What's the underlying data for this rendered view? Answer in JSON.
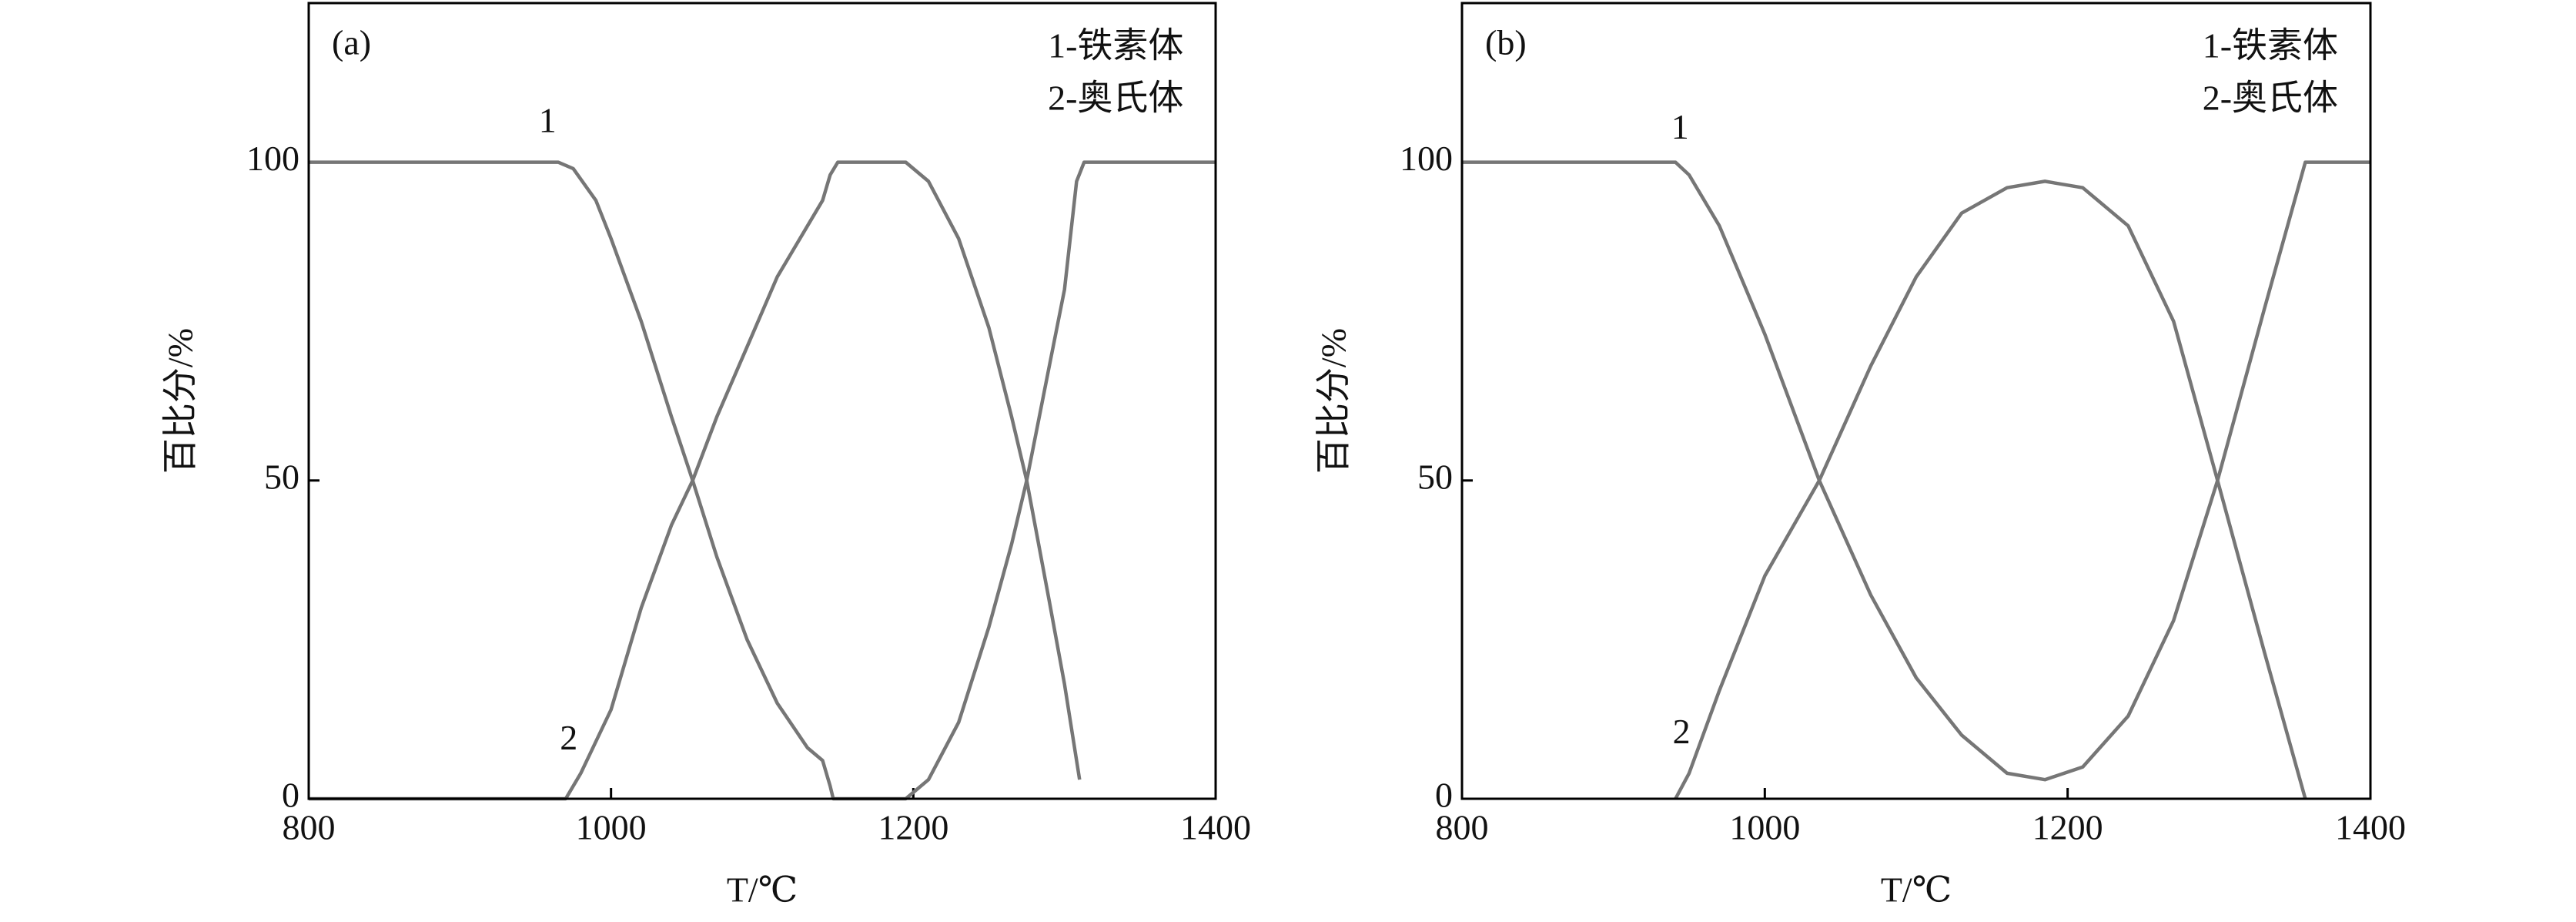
{
  "chart_data": [
    {
      "type": "line",
      "panel": "(a)",
      "xlabel": "T/℃",
      "ylabel": "百比分/%",
      "xlim": [
        800,
        1400
      ],
      "xticks": [
        800,
        1000,
        1200,
        1400
      ],
      "ylim": [
        0,
        125
      ],
      "yticks": [
        0,
        50,
        100
      ],
      "series": [
        {
          "name": "1-铁素体",
          "color": "#767676",
          "x": [
            800,
            965,
            975,
            990,
            1000,
            1020,
            1040,
            1054,
            1070,
            1090,
            1110,
            1130,
            1140,
            1145,
            1147,
            1195,
            1210,
            1230,
            1250,
            1265,
            1275,
            1290,
            1300,
            1308,
            1313,
            1400
          ],
          "values": [
            100,
            100,
            99,
            94,
            88,
            75,
            60,
            50,
            38,
            25,
            15,
            8,
            6,
            2,
            0,
            0,
            3,
            12,
            27,
            40,
            50,
            68,
            80,
            97,
            100,
            100
          ]
        },
        {
          "name": "2-奥氏体",
          "color": "#767676",
          "x": [
            800,
            970,
            980,
            1000,
            1020,
            1040,
            1054,
            1070,
            1090,
            1110,
            1130,
            1140,
            1145,
            1150,
            1195,
            1210,
            1230,
            1250,
            1265,
            1275,
            1290,
            1300,
            1310
          ],
          "values": [
            0,
            0,
            4,
            14,
            30,
            43,
            50,
            60,
            71,
            82,
            90,
            94,
            98,
            100,
            100,
            97,
            88,
            74,
            60,
            50,
            31,
            18,
            3
          ]
        }
      ],
      "annotations": [
        {
          "text": "1",
          "x": 958,
          "y": 106
        },
        {
          "text": "2",
          "x": 972,
          "y": 9
        }
      ]
    },
    {
      "type": "line",
      "panel": "(b)",
      "xlabel": "T/℃",
      "ylabel": "百比分/%",
      "xlim": [
        800,
        1400
      ],
      "xticks": [
        800,
        1000,
        1200,
        1400
      ],
      "ylim": [
        0,
        125
      ],
      "yticks": [
        0,
        50,
        100
      ],
      "series": [
        {
          "name": "1-铁素体",
          "color": "#767676",
          "x": [
            800,
            941,
            950,
            970,
            1000,
            1036,
            1070,
            1100,
            1130,
            1160,
            1185,
            1210,
            1240,
            1270,
            1299,
            1330,
            1357,
            1400
          ],
          "values": [
            100,
            100,
            98,
            90,
            73,
            50,
            32,
            19,
            10,
            4,
            3,
            5,
            13,
            28,
            50,
            77,
            100,
            100
          ]
        },
        {
          "name": "2-奥氏体",
          "color": "#767676",
          "x": [
            941,
            950,
            970,
            1000,
            1036,
            1070,
            1100,
            1130,
            1160,
            1185,
            1210,
            1240,
            1270,
            1299,
            1330,
            1357
          ],
          "values": [
            0,
            4,
            17,
            35,
            50,
            68,
            82,
            92,
            96,
            97,
            96,
            90,
            75,
            50,
            23,
            0
          ]
        }
      ],
      "annotations": [
        {
          "text": "1",
          "x": 944,
          "y": 105
        },
        {
          "text": "2",
          "x": 945,
          "y": 10
        }
      ]
    }
  ]
}
